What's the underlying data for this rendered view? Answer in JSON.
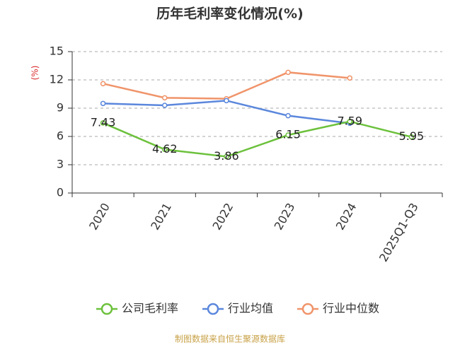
{
  "chart_data": {
    "type": "line",
    "title": "历年毛利率变化情况(%)",
    "y_label": "(%)",
    "categories": [
      "2020",
      "2021",
      "2022",
      "2023",
      "2024",
      "2025Q1-Q3"
    ],
    "series": [
      {
        "name": "公司毛利率",
        "color": "#6cc13c",
        "values": [
          7.43,
          4.62,
          3.86,
          6.15,
          7.59,
          5.95
        ],
        "show_labels": true
      },
      {
        "name": "行业均值",
        "color": "#5b87dc",
        "values": [
          9.5,
          9.3,
          9.8,
          8.2,
          7.4,
          null
        ],
        "show_labels": false
      },
      {
        "name": "行业中位数",
        "color": "#f0946a",
        "values": [
          11.6,
          10.1,
          10.0,
          12.8,
          12.2,
          null
        ],
        "show_labels": false
      }
    ],
    "ylim": [
      0,
      15
    ],
    "yticks": [
      0,
      3,
      6,
      9,
      12,
      15
    ],
    "grid": true,
    "footer": "制图数据来自恒生聚源数据库"
  }
}
